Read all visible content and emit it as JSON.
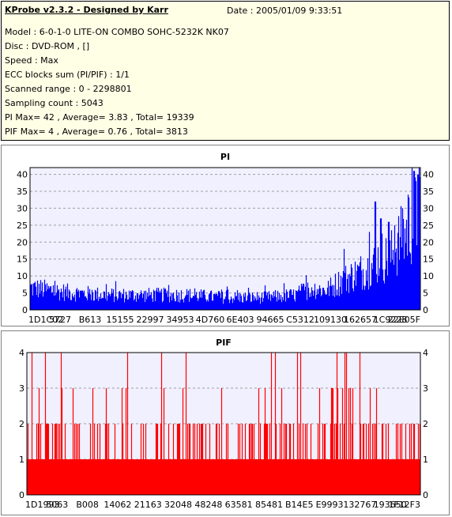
{
  "header": {
    "title": "KProbe v2.3.2 - Designed by Karr",
    "date": "Date : 2005/01/09 9:33:51",
    "lines": [
      "Model : 6-0-1-0 LITE-ON COMBO SOHC-5232K NK07",
      "Disc : DVD-ROM ,  []",
      "Speed : Max",
      "ECC blocks sum (PI/PIF) : 1/1",
      "Scanned range : 0 - 2298801",
      "Sampling count : 5043",
      "PI Max= 42 , Average= 3.83 , Total= 19339",
      "PIF Max= 4 , Average= 0.76 , Total= 3813"
    ]
  },
  "colors": {
    "pi": "#0000ff",
    "pif": "#ff0000",
    "plot_bg": "#f0f0ff",
    "grid": "#a0a0a0",
    "info_bg": "#ffffe6"
  },
  "chart_data": [
    {
      "type": "bar",
      "title": "PI",
      "ylim": [
        0,
        42
      ],
      "yticks": [
        0,
        5,
        10,
        15,
        20,
        25,
        30,
        35,
        40
      ],
      "xtick_labels": [
        "1D1C02",
        "5727",
        "B613",
        "15155",
        "22997",
        "34953",
        "4D760",
        "6E403",
        "94665",
        "C5312",
        "109130",
        "162657",
        "1C9228",
        "22E05F"
      ],
      "grid": true,
      "profile": [
        [
          0,
          9
        ],
        [
          0.05,
          8
        ],
        [
          0.1,
          7
        ],
        [
          0.2,
          6
        ],
        [
          0.3,
          6
        ],
        [
          0.4,
          6
        ],
        [
          0.5,
          5
        ],
        [
          0.6,
          5
        ],
        [
          0.68,
          6
        ],
        [
          0.72,
          9
        ],
        [
          0.76,
          8
        ],
        [
          0.8,
          12
        ],
        [
          0.84,
          15
        ],
        [
          0.88,
          18
        ],
        [
          0.9,
          22
        ],
        [
          0.92,
          20
        ],
        [
          0.94,
          26
        ],
        [
          0.96,
          30
        ],
        [
          0.98,
          36
        ],
        [
          1.0,
          40
        ]
      ],
      "peaks": [
        [
          0.805,
          18
        ],
        [
          0.87,
          23
        ],
        [
          0.885,
          32
        ],
        [
          0.9,
          27
        ],
        [
          0.92,
          26
        ],
        [
          0.935,
          25
        ],
        [
          0.955,
          30
        ],
        [
          0.97,
          34
        ],
        [
          0.98,
          42
        ],
        [
          0.985,
          41
        ],
        [
          0.99,
          38
        ],
        [
          0.995,
          40
        ]
      ],
      "count": 5043
    },
    {
      "type": "bar",
      "title": "PIF",
      "ylim": [
        0,
        4
      ],
      "yticks": [
        0,
        1,
        2,
        3,
        4
      ],
      "xtick_labels": [
        "1D1993",
        "5063",
        "B008",
        "14062",
        "21163",
        "32048",
        "48248",
        "63581",
        "85481",
        "B14E5",
        "E9993",
        "132767",
        "193650",
        "1F12F3"
      ],
      "grid": true,
      "base_level": 1,
      "count": 5043
    }
  ]
}
